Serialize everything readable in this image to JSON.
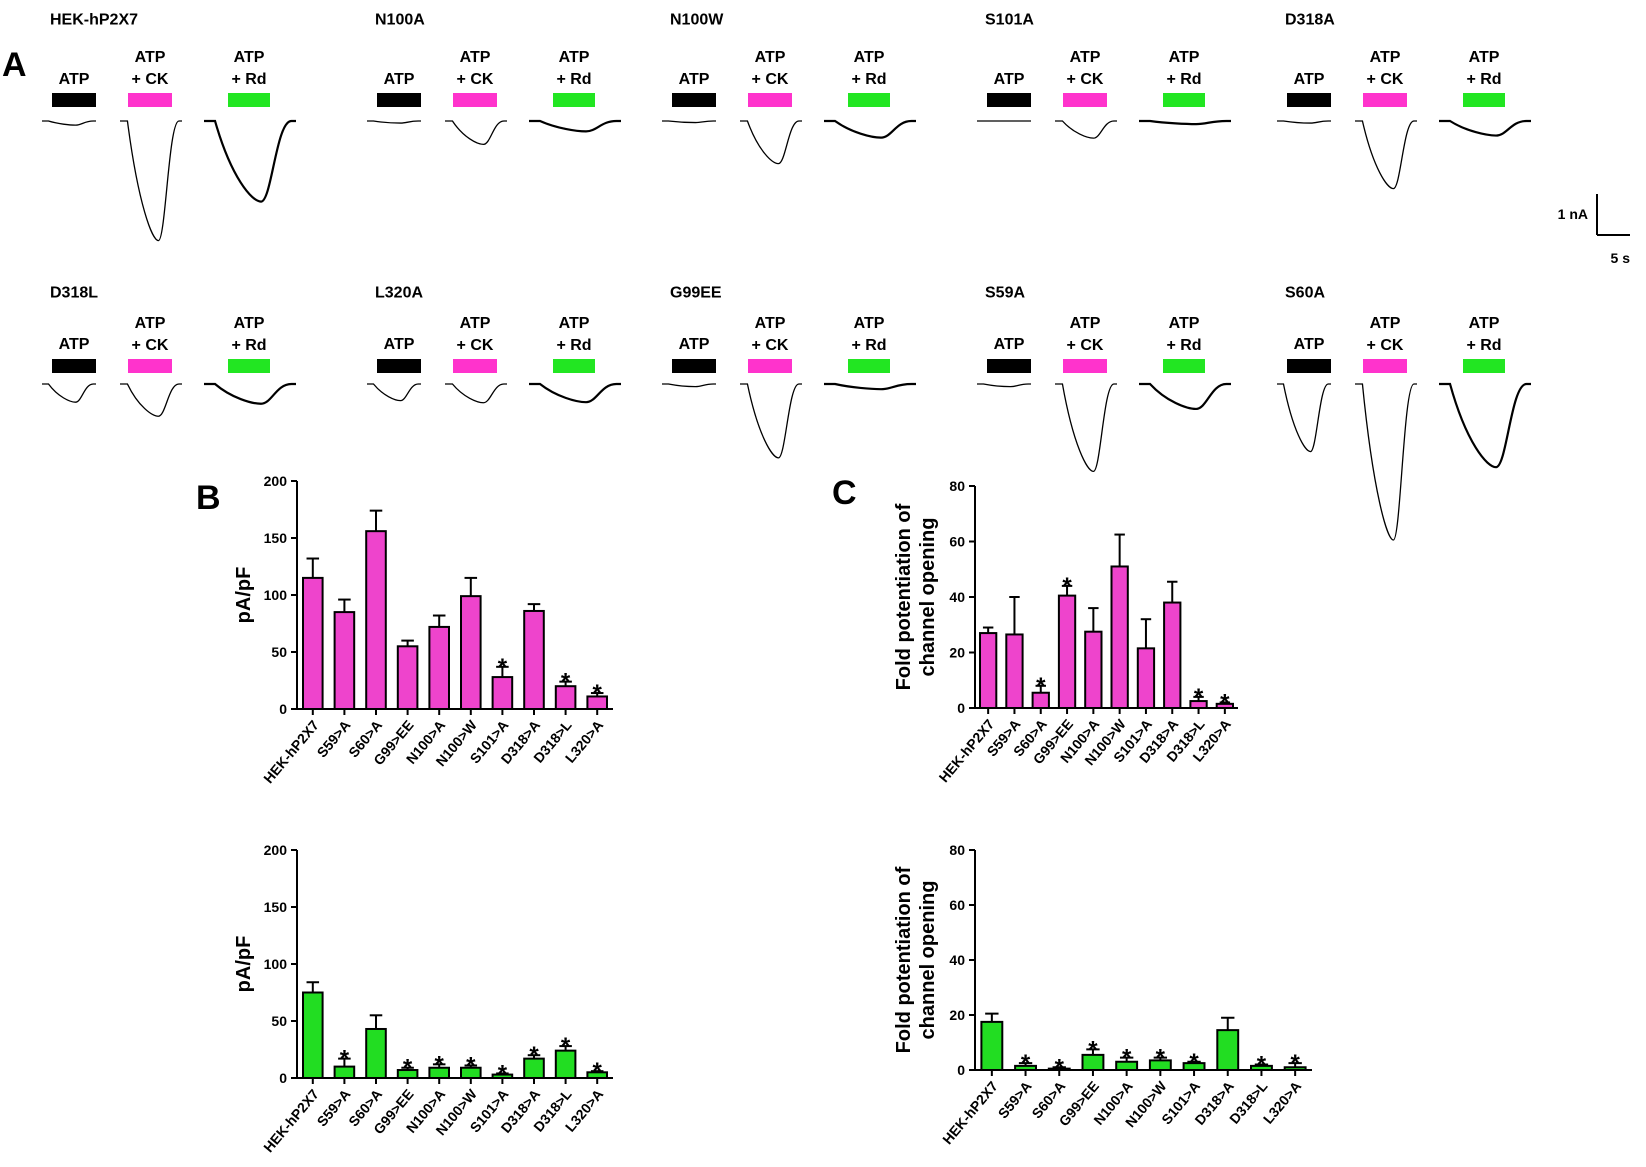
{
  "panel_letters": {
    "a": "A",
    "b": "B",
    "c": "C"
  },
  "colors": {
    "atp": "#000000",
    "ck": "#ff33cc",
    "rd": "#22e622",
    "bar_ck": "#ee44cc",
    "bar_rd": "#22dd22"
  },
  "bar_labels": {
    "atp": "ATP",
    "ck_line1": "ATP",
    "ck_line2": "+ CK",
    "rd_line1": "ATP",
    "rd_line2": "+ Rd"
  },
  "scale_bar": {
    "y_label": "1 nA",
    "x_label": "5 s"
  },
  "traces": [
    {
      "title": "HEK-hP2X7",
      "peaks": [
        0.08,
        2.3,
        1.55
      ]
    },
    {
      "title": "N100A",
      "peaks": [
        0.04,
        0.45,
        0.2
      ]
    },
    {
      "title": "N100W",
      "peaks": [
        0.03,
        0.82,
        0.32
      ]
    },
    {
      "title": "S101A",
      "peaks": [
        0.0,
        0.33,
        0.06
      ]
    },
    {
      "title": "D318A",
      "peaks": [
        0.04,
        1.3,
        0.28
      ]
    },
    {
      "title": "D318L",
      "peaks": [
        0.35,
        0.62,
        0.38
      ]
    },
    {
      "title": "L320A",
      "peaks": [
        0.32,
        0.36,
        0.35
      ]
    },
    {
      "title": "G99EE",
      "peaks": [
        0.05,
        1.42,
        0.1
      ]
    },
    {
      "title": "S59A",
      "peaks": [
        0.05,
        1.68,
        0.48
      ]
    },
    {
      "title": "S60A",
      "peaks": [
        1.3,
        3.0,
        1.6
      ]
    }
  ],
  "chart_data": [
    {
      "id": "B-top",
      "type": "bar",
      "ylabel": "pA/pF",
      "ylim": [
        0,
        200
      ],
      "yticks": [
        0,
        50,
        100,
        150,
        200
      ],
      "categories": [
        "HEK-hP2X7",
        "S59>A",
        "S60>A",
        "G99>EE",
        "N100>A",
        "N100>W",
        "S101>A",
        "D318>A",
        "D318>L",
        "L320>A"
      ],
      "values": [
        115,
        85,
        156,
        55,
        72,
        99,
        28,
        86,
        20,
        11
      ],
      "errors": [
        17,
        11,
        18,
        5,
        10,
        16,
        9,
        6,
        4,
        3
      ],
      "significant": [
        false,
        false,
        false,
        false,
        false,
        false,
        true,
        false,
        true,
        true
      ],
      "star": "*",
      "color": "#ee44cc"
    },
    {
      "id": "B-bottom",
      "type": "bar",
      "ylabel": "pA/pF",
      "ylim": [
        0,
        200
      ],
      "yticks": [
        0,
        50,
        100,
        150,
        200
      ],
      "categories": [
        "HEK-hP2X7",
        "S59>A",
        "S60>A",
        "G99>EE",
        "N100>A",
        "N100>W",
        "S101>A",
        "D318>A",
        "D318>L",
        "L320>A"
      ],
      "values": [
        75,
        10,
        43,
        7,
        9,
        9,
        3,
        17,
        24,
        5
      ],
      "errors": [
        9,
        7,
        12,
        2,
        3,
        2,
        1,
        3,
        4,
        1
      ],
      "significant": [
        false,
        true,
        false,
        true,
        true,
        true,
        true,
        true,
        true,
        true
      ],
      "star": "*",
      "color": "#22dd22"
    },
    {
      "id": "C-top",
      "type": "bar",
      "ylabel_line1": "Fold potentiation of",
      "ylabel_line2": "channel opening",
      "ylim": [
        0,
        80
      ],
      "yticks": [
        0,
        20,
        40,
        60,
        80
      ],
      "categories": [
        "HEK-hP2X7",
        "S59>A",
        "S60>A",
        "G99>EE",
        "N100>A",
        "N100>W",
        "S101>A",
        "D318>A",
        "D318>L",
        "L320>A"
      ],
      "values": [
        27,
        26.5,
        5.5,
        40.5,
        27.5,
        51,
        21.5,
        38,
        2.5,
        1.5
      ],
      "errors": [
        2,
        13.5,
        2.5,
        3.5,
        8.5,
        11.5,
        10.5,
        7.5,
        1.5,
        0.5
      ],
      "significant": [
        false,
        false,
        true,
        true,
        false,
        false,
        false,
        false,
        true,
        true
      ],
      "star": "*",
      "color": "#ee44cc"
    },
    {
      "id": "C-bottom",
      "type": "bar",
      "ylabel_line1": "Fold potentiation of",
      "ylabel_line2": "channel opening",
      "ylim": [
        0,
        80
      ],
      "yticks": [
        0,
        20,
        40,
        60,
        80
      ],
      "categories": [
        "HEK-hP2X7",
        "S59>A",
        "S60>A",
        "G99>EE",
        "N100>A",
        "N100>W",
        "S101>A",
        "D318>A",
        "D318>L",
        "L320>A"
      ],
      "values": [
        17.5,
        1.5,
        0.5,
        5.5,
        3,
        3.5,
        2.5,
        14.5,
        1.5,
        1
      ],
      "errors": [
        3,
        1,
        0.5,
        2,
        1.5,
        1,
        0.5,
        4.5,
        0.5,
        1.5
      ],
      "significant": [
        false,
        true,
        true,
        true,
        true,
        true,
        true,
        false,
        true,
        true
      ],
      "star": "*",
      "color": "#22dd22"
    }
  ]
}
